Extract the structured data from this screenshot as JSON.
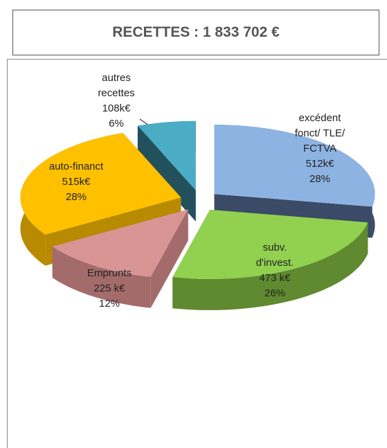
{
  "chart_data": {
    "type": "pie3d",
    "title": "RECETTES : 1 833 702 €",
    "categories": [
      "excédent fonct/ TLE/ FCTVA",
      "subv. d'invest.",
      "Emprunts",
      "auto-financt",
      "autres recettes"
    ],
    "values": [
      512,
      473,
      225,
      515,
      108
    ],
    "value_labels": [
      "512k€",
      "473 k€",
      "225 k€",
      "515k€",
      "108k€"
    ],
    "percents": [
      28,
      26,
      12,
      28,
      6
    ],
    "percent_labels": [
      "28%",
      "26%",
      "12%",
      "28%",
      "6%"
    ],
    "colors": [
      "#8DB3E2",
      "#92D050",
      "#D99594",
      "#FFC000",
      "#4BACC6"
    ],
    "side_colors": [
      "#3B4A66",
      "#5F8A2F",
      "#A46B6B",
      "#B88A00",
      "#22505C"
    ]
  }
}
